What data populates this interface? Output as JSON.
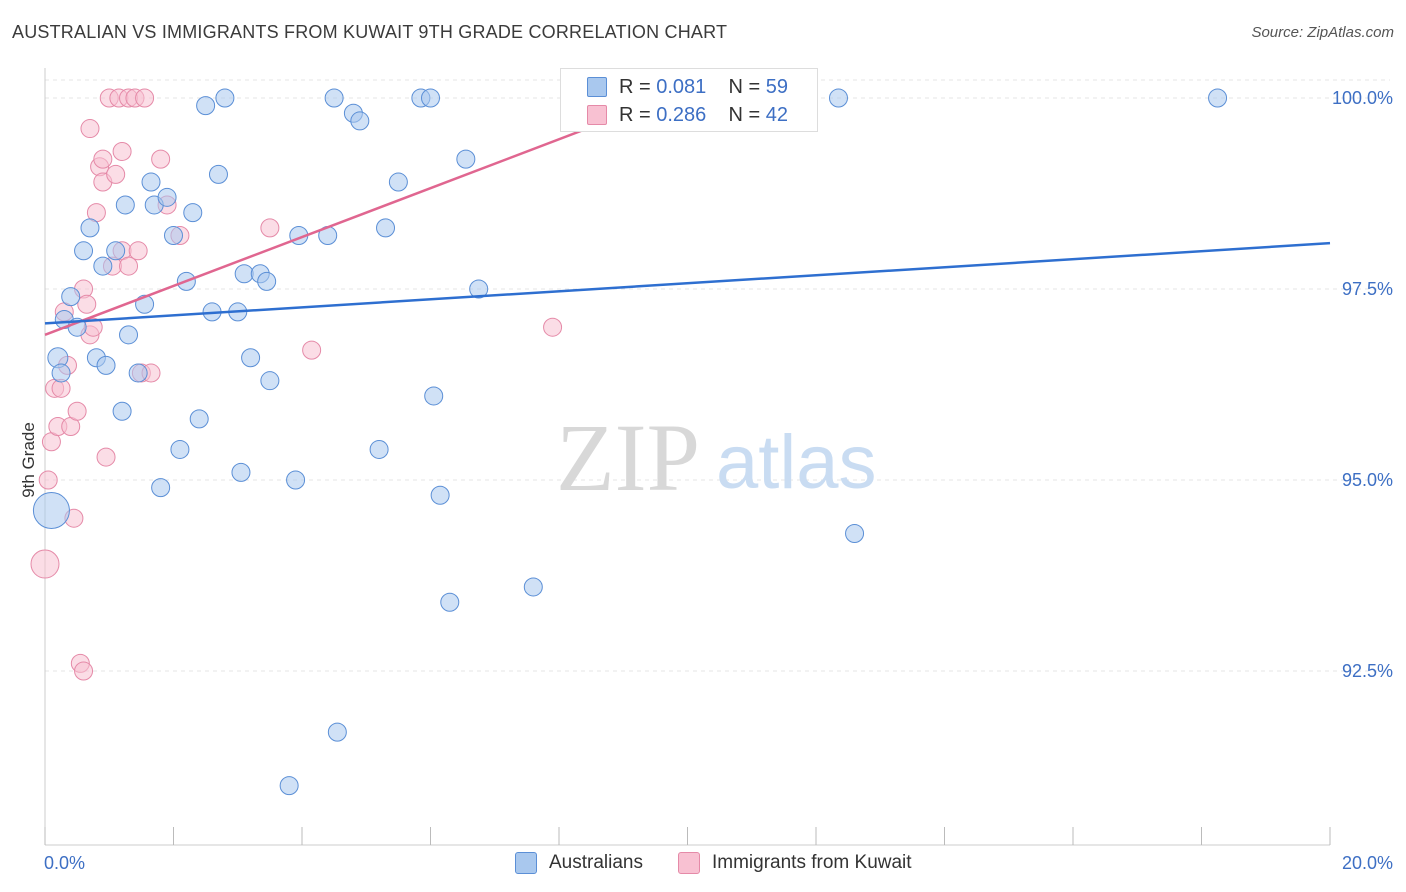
{
  "title": "AUSTRALIAN VS IMMIGRANTS FROM KUWAIT 9TH GRADE CORRELATION CHART",
  "source": "Source: ZipAtlas.com",
  "watermark": {
    "zip": "ZIP",
    "atlas": "atlas"
  },
  "legend": {
    "australians": {
      "r_label": "R = ",
      "r_value": "0.081",
      "n_label": "N = ",
      "n_value": "59"
    },
    "kuwait": {
      "r_label": "R = ",
      "r_value": "0.286",
      "n_label": "N = ",
      "n_value": "42"
    }
  },
  "bottom_legend": {
    "australians": "Australians",
    "kuwait": "Immigrants from Kuwait"
  },
  "colors": {
    "blue_fill": "#a9c8ee",
    "blue_stroke": "#5b8fd6",
    "blue_line": "#2e6fd0",
    "pink_fill": "#f8c1d2",
    "pink_stroke": "#e58aa8",
    "pink_line": "#e06690",
    "axis_text": "#3d6fc4",
    "grid": "#e5e5e5"
  },
  "chart_data": {
    "type": "scatter",
    "title": "AUSTRALIAN VS IMMIGRANTS FROM KUWAIT 9TH GRADE CORRELATION CHART",
    "xlabel": "",
    "ylabel": "9th Grade",
    "xlim": [
      0,
      20
    ],
    "ylim": [
      90.0,
      100.2
    ],
    "x_tick_labels": [
      "0.0%",
      "20.0%"
    ],
    "y_ticks": [
      92.5,
      95.0,
      97.5,
      100.0
    ],
    "y_tick_labels": [
      "92.5%",
      "95.0%",
      "97.5%",
      "100.0%"
    ],
    "grid": true,
    "series": [
      {
        "name": "Australians",
        "R": 0.081,
        "N": 59,
        "trend": {
          "x": [
            0,
            20
          ],
          "y": [
            97.05,
            98.1
          ]
        },
        "points": [
          [
            0.1,
            94.6,
            18
          ],
          [
            0.2,
            96.6,
            10
          ],
          [
            0.25,
            96.4,
            9
          ],
          [
            0.3,
            97.1,
            9
          ],
          [
            0.4,
            97.4,
            9
          ],
          [
            0.5,
            97.0,
            9
          ],
          [
            0.6,
            98.0,
            9
          ],
          [
            0.7,
            98.3,
            9
          ],
          [
            0.8,
            96.6,
            9
          ],
          [
            0.9,
            97.8,
            9
          ],
          [
            0.95,
            96.5,
            9
          ],
          [
            1.1,
            98.0,
            9
          ],
          [
            1.2,
            95.9,
            9
          ],
          [
            1.25,
            98.6,
            9
          ],
          [
            1.3,
            96.9,
            9
          ],
          [
            1.45,
            96.4,
            9
          ],
          [
            1.55,
            97.3,
            9
          ],
          [
            1.65,
            98.9,
            9
          ],
          [
            1.7,
            98.6,
            9
          ],
          [
            1.8,
            94.9,
            9
          ],
          [
            1.9,
            98.7,
            9
          ],
          [
            2.0,
            98.2,
            9
          ],
          [
            2.1,
            95.4,
            9
          ],
          [
            2.2,
            97.6,
            9
          ],
          [
            2.3,
            98.5,
            9
          ],
          [
            2.4,
            95.8,
            9
          ],
          [
            2.5,
            99.9,
            9
          ],
          [
            2.6,
            97.2,
            9
          ],
          [
            2.7,
            99.0,
            9
          ],
          [
            2.8,
            100.0,
            9
          ],
          [
            3.0,
            97.2,
            9
          ],
          [
            3.05,
            95.1,
            9
          ],
          [
            3.1,
            97.7,
            9
          ],
          [
            3.2,
            96.6,
            9
          ],
          [
            3.35,
            97.7,
            9
          ],
          [
            3.45,
            97.6,
            9
          ],
          [
            3.5,
            96.3,
            9
          ],
          [
            3.8,
            91.0,
            9
          ],
          [
            3.9,
            95.0,
            9
          ],
          [
            3.95,
            98.2,
            9
          ],
          [
            4.4,
            98.2,
            9
          ],
          [
            4.5,
            100.0,
            9
          ],
          [
            4.55,
            91.7,
            9
          ],
          [
            4.8,
            99.8,
            9
          ],
          [
            4.9,
            99.7,
            9
          ],
          [
            5.2,
            95.4,
            9
          ],
          [
            5.3,
            98.3,
            9
          ],
          [
            5.5,
            98.9,
            9
          ],
          [
            5.85,
            100.0,
            9
          ],
          [
            6.0,
            100.0,
            9
          ],
          [
            6.05,
            96.1,
            9
          ],
          [
            6.15,
            94.8,
            9
          ],
          [
            6.3,
            93.4,
            9
          ],
          [
            6.55,
            99.2,
            9
          ],
          [
            6.75,
            97.5,
            9
          ],
          [
            7.6,
            93.6,
            9
          ],
          [
            12.35,
            100.0,
            9
          ],
          [
            12.6,
            94.3,
            9
          ],
          [
            18.25,
            100.0,
            9
          ]
        ]
      },
      {
        "name": "Immigrants from Kuwait",
        "R": 0.286,
        "N": 42,
        "trend": {
          "x": [
            0,
            10
          ],
          "y": [
            96.9,
            100.1
          ]
        },
        "points": [
          [
            0.0,
            93.9,
            14
          ],
          [
            0.05,
            95.0,
            9
          ],
          [
            0.1,
            95.5,
            9
          ],
          [
            0.15,
            96.2,
            9
          ],
          [
            0.2,
            95.7,
            9
          ],
          [
            0.25,
            96.2,
            9
          ],
          [
            0.3,
            97.2,
            9
          ],
          [
            0.35,
            96.5,
            9
          ],
          [
            0.4,
            95.7,
            9
          ],
          [
            0.45,
            94.5,
            9
          ],
          [
            0.5,
            95.9,
            9
          ],
          [
            0.55,
            92.6,
            9
          ],
          [
            0.6,
            92.5,
            9
          ],
          [
            0.6,
            97.5,
            9
          ],
          [
            0.65,
            97.3,
            9
          ],
          [
            0.7,
            96.9,
            9
          ],
          [
            0.7,
            99.6,
            9
          ],
          [
            0.75,
            97.0,
            9
          ],
          [
            0.8,
            98.5,
            9
          ],
          [
            0.85,
            99.1,
            9
          ],
          [
            0.9,
            99.2,
            9
          ],
          [
            0.9,
            98.9,
            9
          ],
          [
            0.95,
            95.3,
            9
          ],
          [
            1.0,
            100.0,
            9
          ],
          [
            1.05,
            97.8,
            9
          ],
          [
            1.1,
            99.0,
            9
          ],
          [
            1.15,
            100.0,
            9
          ],
          [
            1.2,
            98.0,
            9
          ],
          [
            1.2,
            99.3,
            9
          ],
          [
            1.3,
            100.0,
            9
          ],
          [
            1.3,
            97.8,
            9
          ],
          [
            1.4,
            100.0,
            9
          ],
          [
            1.45,
            98.0,
            9
          ],
          [
            1.5,
            96.4,
            9
          ],
          [
            1.55,
            100.0,
            9
          ],
          [
            1.65,
            96.4,
            9
          ],
          [
            1.8,
            99.2,
            9
          ],
          [
            1.9,
            98.6,
            9
          ],
          [
            2.1,
            98.2,
            9
          ],
          [
            3.5,
            98.3,
            9
          ],
          [
            4.15,
            96.7,
            9
          ],
          [
            7.9,
            97.0,
            9
          ]
        ]
      }
    ]
  }
}
